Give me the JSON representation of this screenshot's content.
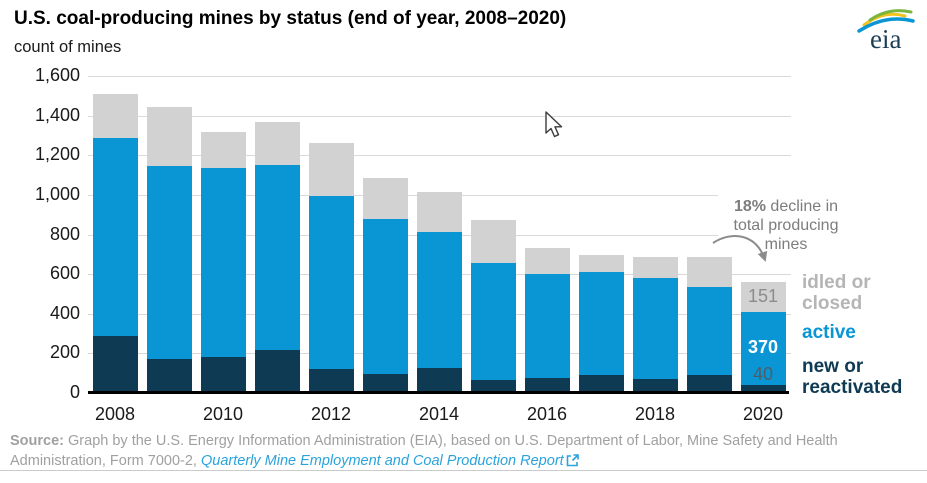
{
  "header": {
    "title": "U.S. coal-producing mines by status (end of year, 2008–2020)",
    "subtitle": "count of mines",
    "logo_text": "eia"
  },
  "chart_data": {
    "type": "bar",
    "stacked": true,
    "title": "U.S. coal-producing mines by status (end of year, 2008–2020)",
    "ylabel": "count of mines",
    "ylim": [
      0,
      1600
    ],
    "grid": true,
    "legend_position": "right",
    "categories": [
      "2008",
      "2009",
      "2010",
      "2011",
      "2012",
      "2013",
      "2014",
      "2015",
      "2016",
      "2017",
      "2018",
      "2019",
      "2020"
    ],
    "series": [
      {
        "name": "new or reactivated",
        "color": "#0e3a53",
        "values": [
          290,
          170,
          180,
          215,
          120,
          95,
          125,
          65,
          75,
          90,
          70,
          90,
          40
        ]
      },
      {
        "name": "active",
        "color": "#0a96d5",
        "values": [
          995,
          975,
          955,
          935,
          875,
          785,
          690,
          590,
          525,
          520,
          510,
          445,
          370
        ]
      },
      {
        "name": "idled or closed",
        "color": "#d2d2d2",
        "values": [
          225,
          300,
          180,
          220,
          265,
          205,
          200,
          220,
          130,
          85,
          105,
          150,
          151
        ]
      }
    ],
    "y_tick_labels": [
      "0",
      "200",
      "400",
      "600",
      "800",
      "1,000",
      "1,200",
      "1,400",
      "1,600"
    ],
    "x_tick_labels": [
      "2008",
      "2010",
      "2012",
      "2014",
      "2016",
      "2018",
      "2020"
    ],
    "last_bar_labels": [
      {
        "series_index": 2,
        "text": "151",
        "color": "#8c8c8c",
        "bold": false
      },
      {
        "series_index": 1,
        "text": "370",
        "color": "#ffffff",
        "bold": true
      },
      {
        "series_index": 0,
        "text": "40",
        "color": "#4f5d66",
        "bold": false
      }
    ]
  },
  "legend": [
    {
      "label": "idled or closed",
      "color": "#b5b5b5"
    },
    {
      "label": "active",
      "color": "#0a96d5"
    },
    {
      "label": "new or reactivated",
      "color": "#0e3a53"
    }
  ],
  "annotation": {
    "pct": "18%",
    "rest": " decline in total producing mines"
  },
  "source": {
    "prefix": "Source:",
    "body": " Graph by the U.S. Energy Information Administration (EIA), based on U.S. Department of Labor, Mine Safety and Health Administration, Form 7000-2, ",
    "link_text": "Quarterly Mine Employment and Coal Production Report"
  },
  "colors": {
    "accent_blue": "#0a96d5",
    "navy": "#0e3a53",
    "gray_bar": "#d2d2d2",
    "annotation_gray": "#7d7d7d",
    "link_blue": "#2aa3dc"
  }
}
